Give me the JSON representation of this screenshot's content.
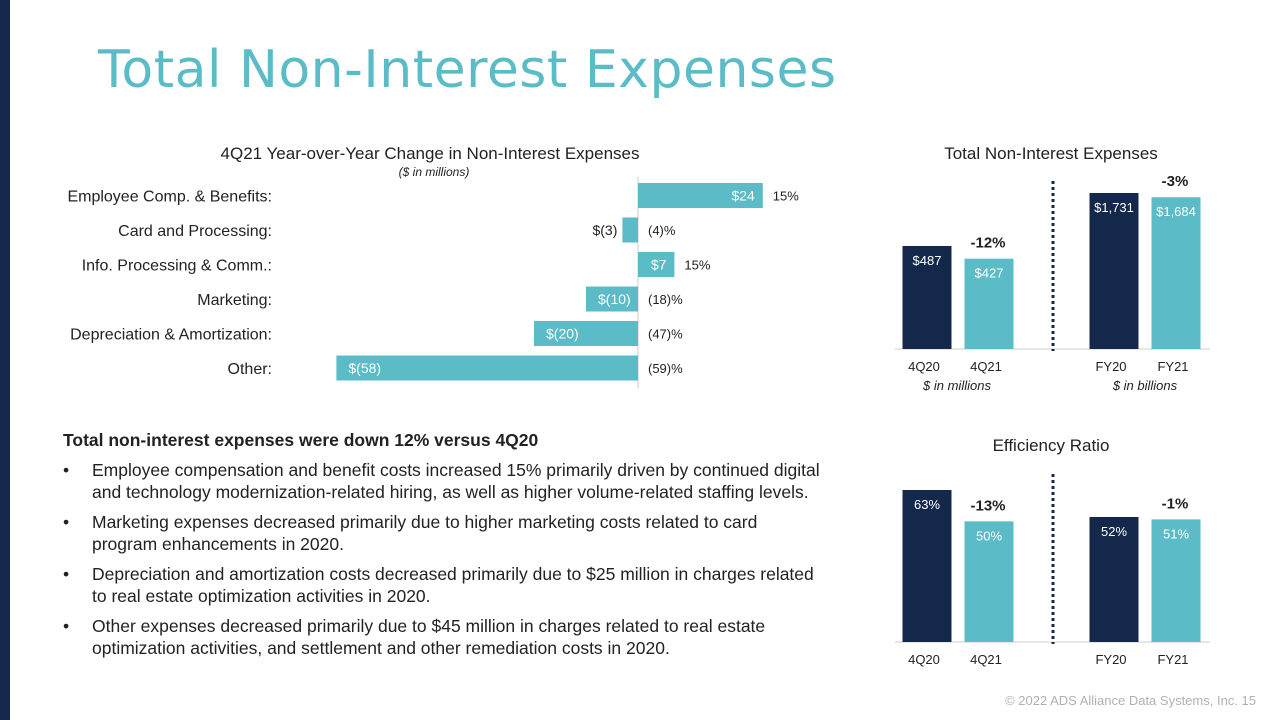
{
  "title": "Total Non-Interest Expenses",
  "colors": {
    "navy": "#14284b",
    "teal": "#5bbcc8",
    "title": "#5bbcc8",
    "axis": "#cccccc"
  },
  "chart_data": [
    {
      "type": "bar",
      "orientation": "horizontal",
      "title": "4Q21 Year-over-Year Change in Non-Interest Expenses",
      "subtitle": "($ in millions)",
      "categories": [
        "Employee Comp. & Benefits:",
        "Card and Processing:",
        "Info. Processing & Comm.:",
        "Marketing:",
        "Depreciation & Amortization:",
        "Other:"
      ],
      "values": [
        24,
        -3,
        7,
        -10,
        -20,
        -58
      ],
      "value_labels": [
        "$24",
        "$(3)",
        "$7",
        "$(10)",
        "$(20)",
        "$(58)"
      ],
      "pct_labels": [
        "15%",
        "(4)%",
        "15%",
        "(18)%",
        "(47)%",
        "(59)%"
      ]
    },
    {
      "type": "bar",
      "title": "Total Non-Interest Expenses",
      "categories": [
        "4Q20",
        "4Q21",
        "FY20",
        "FY21"
      ],
      "values": [
        487,
        427,
        1731,
        1684
      ],
      "value_labels": [
        "$487",
        "$427",
        "$1,731",
        "$1,684"
      ],
      "changes": [
        "-12%",
        "-3%"
      ],
      "unit_notes": [
        "$ in millions",
        "$ in billions"
      ]
    },
    {
      "type": "bar",
      "title": "Efficiency Ratio",
      "categories": [
        "4Q20",
        "4Q21",
        "FY20",
        "FY21"
      ],
      "values": [
        63,
        50,
        52,
        51
      ],
      "value_labels": [
        "63%",
        "50%",
        "52%",
        "51%"
      ],
      "changes": [
        "-13%",
        "-1%"
      ]
    }
  ],
  "summary": {
    "heading": "Total non-interest expenses were down 12% versus 4Q20",
    "bullet_symbol": "•",
    "bullets": [
      "Employee compensation and benefit costs increased 15% primarily driven by continued digital and technology modernization-related hiring, as well as higher volume-related staffing levels.",
      "Marketing expenses decreased primarily due to higher marketing costs related to card program enhancements in 2020.",
      "Depreciation and amortization costs decreased primarily due to $25 million in charges related to real estate optimization activities in 2020.",
      "Other expenses decreased primarily due to $45 million in charges related to real estate optimization activities, and settlement and other remediation costs in 2020."
    ]
  },
  "footer": "© 2022 ADS Alliance Data Systems, Inc.  15"
}
